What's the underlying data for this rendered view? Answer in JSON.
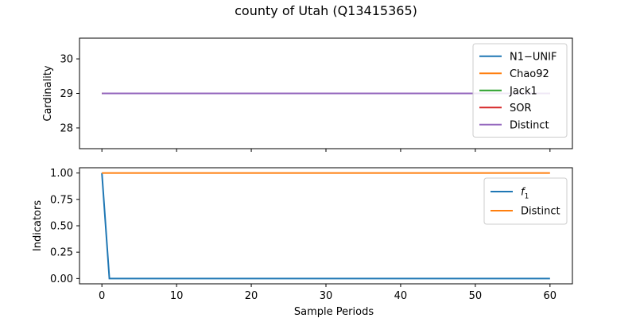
{
  "title": "county of Utah (Q13415365)",
  "chart_data": [
    {
      "type": "line",
      "ylabel": "Cardinality",
      "xlim": [
        -3,
        63
      ],
      "ylim": [
        27.4,
        30.6
      ],
      "xticks": [
        0,
        10,
        20,
        30,
        40,
        50,
        60
      ],
      "yticks": [
        28,
        29,
        30
      ],
      "xticks_labeled": false,
      "legend": "top-right",
      "grid": false,
      "series": [
        {
          "name": "N1−UNIF",
          "color": "#1f77b4",
          "x": [
            0,
            60
          ],
          "y": [
            29,
            29
          ]
        },
        {
          "name": "Chao92",
          "color": "#ff7f0e",
          "x": [
            0,
            60
          ],
          "y": [
            29,
            29
          ]
        },
        {
          "name": "Jack1",
          "color": "#2ca02c",
          "x": [
            0,
            60
          ],
          "y": [
            29,
            29
          ]
        },
        {
          "name": "SOR",
          "color": "#d62728",
          "x": [
            0,
            60
          ],
          "y": [
            29,
            29
          ]
        },
        {
          "name": "Distinct",
          "color": "#9467bd",
          "x": [
            0,
            60
          ],
          "y": [
            29,
            29
          ]
        }
      ]
    },
    {
      "type": "line",
      "xlabel": "Sample Periods",
      "ylabel": "Indicators",
      "xlim": [
        -3,
        63
      ],
      "ylim": [
        -0.05,
        1.05
      ],
      "xticks": [
        0,
        10,
        20,
        30,
        40,
        50,
        60
      ],
      "yticks": [
        0.0,
        0.25,
        0.5,
        0.75,
        1.0
      ],
      "ytick_labels": [
        "0.00",
        "0.25",
        "0.50",
        "0.75",
        "1.00"
      ],
      "xticks_labeled": true,
      "legend": "top-right",
      "grid": false,
      "series": [
        {
          "name": "f",
          "name_subscript": "1",
          "color": "#1f77b4",
          "x": [
            0,
            1,
            60
          ],
          "y": [
            1.0,
            0.0,
            0.0
          ]
        },
        {
          "name": "Distinct",
          "color": "#ff7f0e",
          "x": [
            0,
            60
          ],
          "y": [
            1.0,
            1.0
          ]
        }
      ]
    }
  ]
}
